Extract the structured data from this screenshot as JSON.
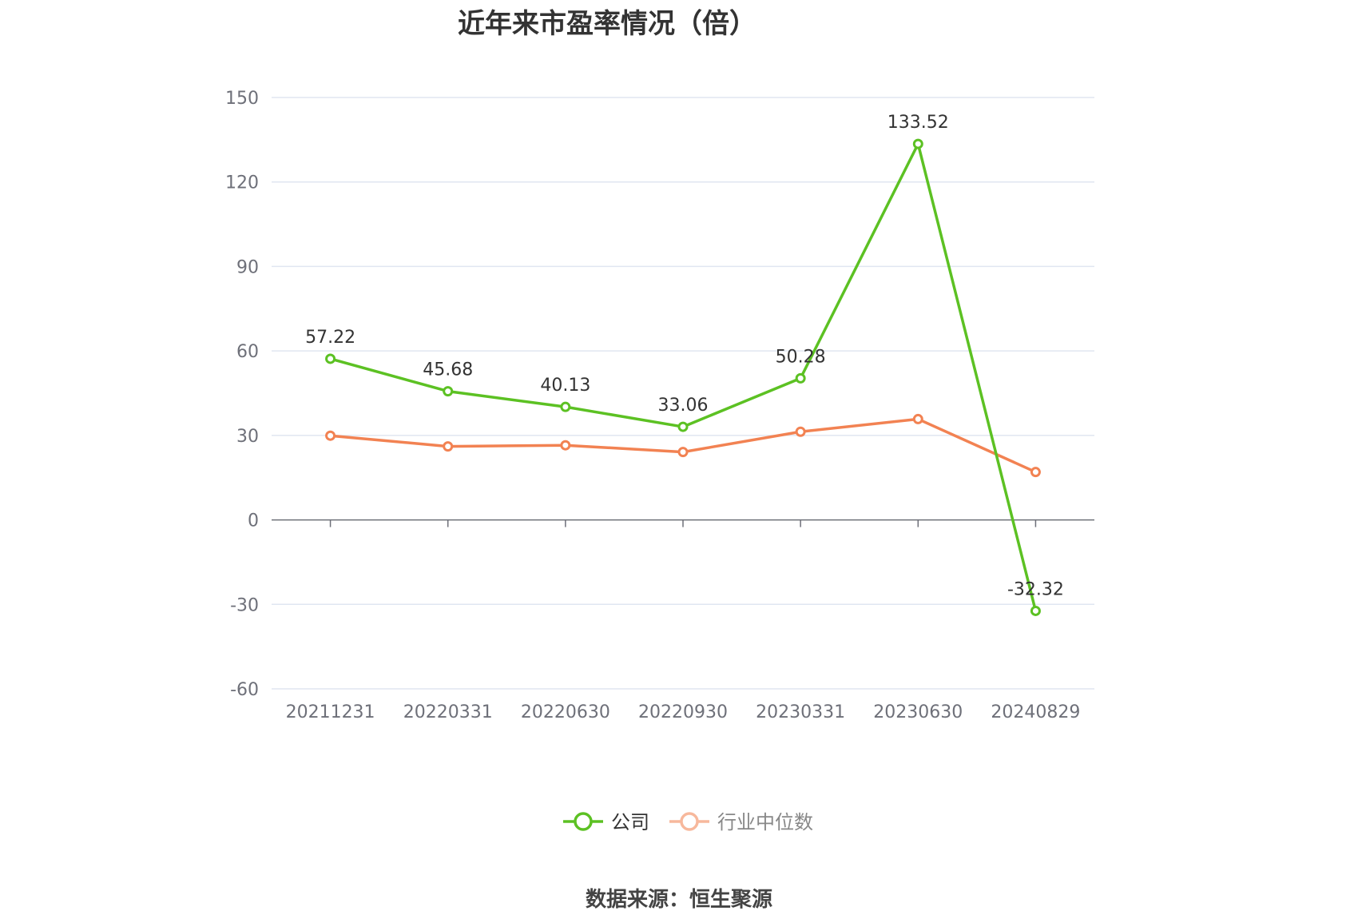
{
  "source": "数据来源：恒生聚源",
  "chart_data": {
    "type": "line",
    "title": "近年来市盈率情况（倍）",
    "categories": [
      "20211231",
      "20220331",
      "20220630",
      "20220930",
      "20230331",
      "20230630",
      "20240829"
    ],
    "ylim": [
      -60,
      150
    ],
    "yticks": [
      "-60",
      "-30",
      "0",
      "30",
      "60",
      "90",
      "120",
      "150"
    ],
    "grid": true,
    "legend_position": "bottom-center",
    "series": [
      {
        "name": "公司",
        "color": "#5cc123",
        "values": [
          57.22,
          45.68,
          40.13,
          33.06,
          50.28,
          133.52,
          -32.32
        ],
        "labels": [
          "57.22",
          "45.68",
          "40.13",
          "33.06",
          "50.28",
          "133.52",
          "-32.32"
        ],
        "show_labels": true
      },
      {
        "name": "行业中位数",
        "color": "#f28252",
        "legend_color": "#f7b89c",
        "values": [
          29.9,
          26.1,
          26.5,
          24.1,
          31.3,
          35.8,
          17.0
        ],
        "show_labels": false
      }
    ]
  }
}
